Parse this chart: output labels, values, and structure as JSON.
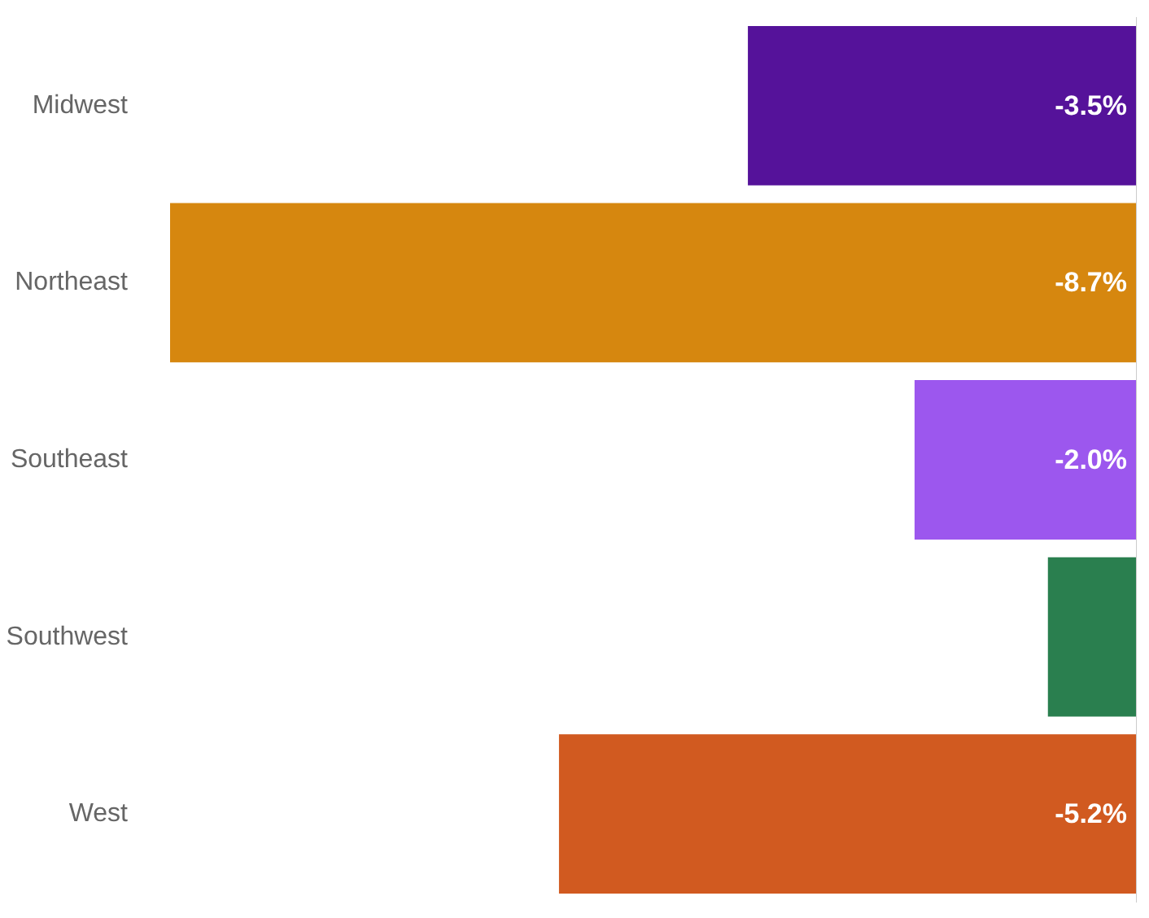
{
  "chart_data": {
    "type": "bar",
    "orientation": "horizontal",
    "categories": [
      "Midwest",
      "Northeast",
      "Southeast",
      "Southwest",
      "West"
    ],
    "values": [
      -3.5,
      -8.7,
      -2.0,
      -0.8,
      -5.2
    ],
    "colors": [
      "#55129a",
      "#d6870f",
      "#9c57ee",
      "#2a7f4f",
      "#d15a20"
    ],
    "value_labels": [
      "-3.5%",
      "-8.7%",
      "-2.0%",
      null,
      "-5.2%"
    ],
    "xlim": [
      -8.7,
      0
    ],
    "grid": false
  }
}
